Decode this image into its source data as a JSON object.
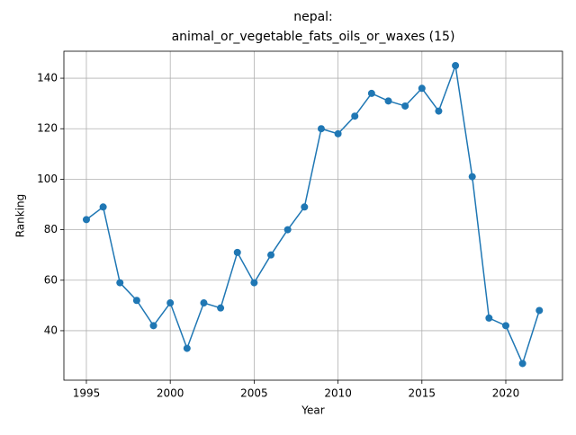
{
  "chart_data": {
    "type": "line",
    "title": [
      "nepal:",
      "animal_or_vegetable_fats_oils_or_waxes (15)"
    ],
    "xlabel": "Year",
    "ylabel": "Ranking",
    "x": [
      1995,
      1996,
      1997,
      1998,
      1999,
      2000,
      2001,
      2002,
      2003,
      2004,
      2005,
      2006,
      2007,
      2008,
      2009,
      2010,
      2011,
      2012,
      2013,
      2014,
      2015,
      2016,
      2017,
      2018,
      2019,
      2020,
      2021,
      2022
    ],
    "series": [
      {
        "name": "Ranking",
        "color": "#1f77b4",
        "values": [
          84,
          89,
          59,
          52,
          42,
          51,
          33,
          51,
          49,
          71,
          59,
          70,
          80,
          89,
          120,
          118,
          125,
          134,
          131,
          129,
          136,
          127,
          145,
          101,
          45,
          42,
          27,
          48
        ]
      }
    ],
    "xlim": [
      1993.66,
      2023.38
    ],
    "xticks": [
      1995,
      2000,
      2005,
      2010,
      2015,
      2020
    ],
    "ylim": [
      20.4,
      150.7
    ],
    "yticks": [
      40,
      60,
      80,
      100,
      120,
      140
    ],
    "grid": true
  }
}
